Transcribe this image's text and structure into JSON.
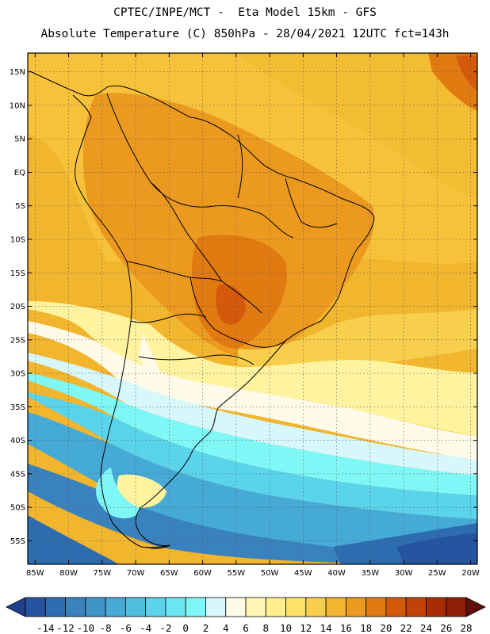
{
  "title": {
    "line1": "CPTEC/INPE/MCT -  Eta Model 15km - GFS",
    "line2": "Absolute Temperature (C) 850hPa - 28/04/2021 12UTC fct=143h"
  },
  "map": {
    "region": "South America",
    "lat_labels": [
      "15N",
      "10N",
      "5N",
      "EQ",
      "5S",
      "10S",
      "15S",
      "20S",
      "25S",
      "30S",
      "35S",
      "40S",
      "45S",
      "50S",
      "55S"
    ],
    "lon_labels": [
      "85W",
      "80W",
      "75W",
      "70W",
      "65W",
      "60W",
      "55W",
      "50W",
      "45W",
      "40W",
      "35W",
      "30W",
      "25W",
      "20W"
    ],
    "lat_values": [
      15,
      10,
      5,
      0,
      -5,
      -10,
      -15,
      -20,
      -25,
      -30,
      -35,
      -40,
      -45,
      -50,
      -55
    ],
    "lon_values": [
      -85,
      -80,
      -75,
      -70,
      -65,
      -60,
      -55,
      -50,
      -45,
      -40,
      -35,
      -30,
      -25,
      -20
    ],
    "gridlines": "dotted"
  },
  "colorbar": {
    "labels": [
      "-14",
      "-12",
      "-10",
      "-8",
      "-6",
      "-4",
      "-2",
      "0",
      "2",
      "4",
      "6",
      "8",
      "10",
      "12",
      "14",
      "16",
      "18",
      "20",
      "22",
      "24",
      "26",
      "28"
    ],
    "colors": [
      "#1f3f8f",
      "#2554a0",
      "#2e6cb0",
      "#3a82bd",
      "#3f95c8",
      "#46aad6",
      "#4fbfe0",
      "#5ad4ea",
      "#6ae6f0",
      "#7ff7f7",
      "#d7f7fa",
      "#fffbe8",
      "#fff7b3",
      "#ffef8a",
      "#fde36a",
      "#f7cf4d",
      "#f2b52e",
      "#eb9a1f",
      "#e27a12",
      "#d4590b",
      "#c24107",
      "#a82d05",
      "#8e1e06",
      "#5e0f0c"
    ]
  }
}
